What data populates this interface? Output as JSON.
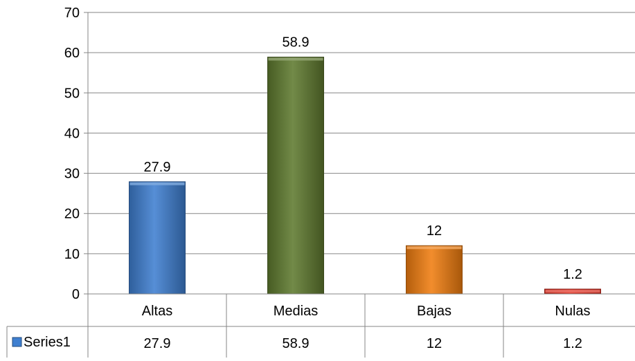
{
  "chart_data": {
    "type": "bar",
    "categories": [
      "Altas",
      "Medias",
      "Bajas",
      "Nulas"
    ],
    "series": [
      {
        "name": "Series1",
        "values": [
          27.9,
          58.9,
          12,
          1.2
        ],
        "point_colors": [
          "#3f7fd0",
          "#5f7a2f",
          "#f07d10",
          "#e02a1c"
        ]
      }
    ],
    "data_labels": [
      "27.9",
      "58.9",
      "12",
      "1.2"
    ],
    "table_values": [
      "27.9",
      "58.9",
      "12",
      "1.2"
    ],
    "ylim": [
      0,
      70
    ],
    "yticks": [
      0,
      10,
      20,
      30,
      40,
      50,
      60,
      70
    ],
    "grid": true,
    "data_table": true,
    "legend_key_color": "#3f7fd0",
    "colors": {
      "axis": "#868686",
      "grid": "#868686"
    }
  }
}
